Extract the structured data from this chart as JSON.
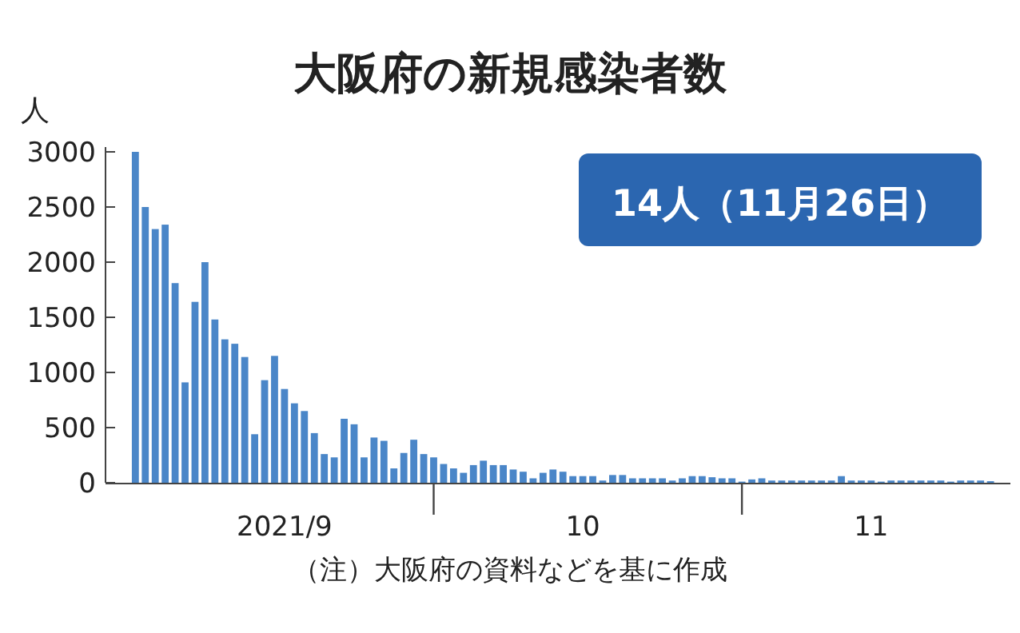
{
  "chart_data": {
    "type": "bar",
    "title": "大阪府の新規感染者数",
    "ylabel": "人",
    "annotations": [
      "14人（11月26日）",
      "（注）大阪府の資料などを基に作成"
    ],
    "x": [
      "2021-09-01",
      "2021-09-02",
      "2021-09-03",
      "2021-09-04",
      "2021-09-05",
      "2021-09-06",
      "2021-09-07",
      "2021-09-08",
      "2021-09-09",
      "2021-09-10",
      "2021-09-11",
      "2021-09-12",
      "2021-09-13",
      "2021-09-14",
      "2021-09-15",
      "2021-09-16",
      "2021-09-17",
      "2021-09-18",
      "2021-09-19",
      "2021-09-20",
      "2021-09-21",
      "2021-09-22",
      "2021-09-23",
      "2021-09-24",
      "2021-09-25",
      "2021-09-26",
      "2021-09-27",
      "2021-09-28",
      "2021-09-29",
      "2021-09-30",
      "2021-10-01",
      "2021-10-02",
      "2021-10-03",
      "2021-10-04",
      "2021-10-05",
      "2021-10-06",
      "2021-10-07",
      "2021-10-08",
      "2021-10-09",
      "2021-10-10",
      "2021-10-11",
      "2021-10-12",
      "2021-10-13",
      "2021-10-14",
      "2021-10-15",
      "2021-10-16",
      "2021-10-17",
      "2021-10-18",
      "2021-10-19",
      "2021-10-20",
      "2021-10-21",
      "2021-10-22",
      "2021-10-23",
      "2021-10-24",
      "2021-10-25",
      "2021-10-26",
      "2021-10-27",
      "2021-10-28",
      "2021-10-29",
      "2021-10-30",
      "2021-10-31",
      "2021-11-01",
      "2021-11-02",
      "2021-11-03",
      "2021-11-04",
      "2021-11-05",
      "2021-11-06",
      "2021-11-07",
      "2021-11-08",
      "2021-11-09",
      "2021-11-10",
      "2021-11-11",
      "2021-11-12",
      "2021-11-13",
      "2021-11-14",
      "2021-11-15",
      "2021-11-16",
      "2021-11-17",
      "2021-11-18",
      "2021-11-19",
      "2021-11-20",
      "2021-11-21",
      "2021-11-22",
      "2021-11-23",
      "2021-11-24",
      "2021-11-25",
      "2021-11-26"
    ],
    "values": [
      3000,
      2500,
      2300,
      2340,
      1810,
      910,
      1640,
      2000,
      1480,
      1300,
      1260,
      1140,
      440,
      930,
      1150,
      850,
      720,
      650,
      450,
      260,
      230,
      580,
      530,
      230,
      410,
      380,
      130,
      270,
      390,
      260,
      230,
      170,
      130,
      90,
      160,
      200,
      160,
      160,
      120,
      100,
      40,
      90,
      120,
      100,
      60,
      60,
      60,
      20,
      70,
      70,
      40,
      40,
      40,
      40,
      20,
      40,
      60,
      60,
      50,
      40,
      40,
      10,
      30,
      40,
      20,
      20,
      20,
      20,
      20,
      20,
      20,
      60,
      20,
      20,
      20,
      10,
      20,
      20,
      20,
      20,
      20,
      20,
      10,
      20,
      20,
      20,
      14
    ],
    "color": "#4a86c8",
    "xlim": [
      "2021-08-29",
      "2021-11-28"
    ],
    "xticks": [
      {
        "value": "2021-09-16",
        "label": "2021/9"
      },
      {
        "value": "2021-10-16",
        "label": "10"
      },
      {
        "value": "2021-11-14",
        "label": "11"
      }
    ],
    "ylim": [
      0,
      3000
    ],
    "yticks": [
      0,
      500,
      1000,
      1500,
      2000,
      2500,
      3000
    ]
  }
}
